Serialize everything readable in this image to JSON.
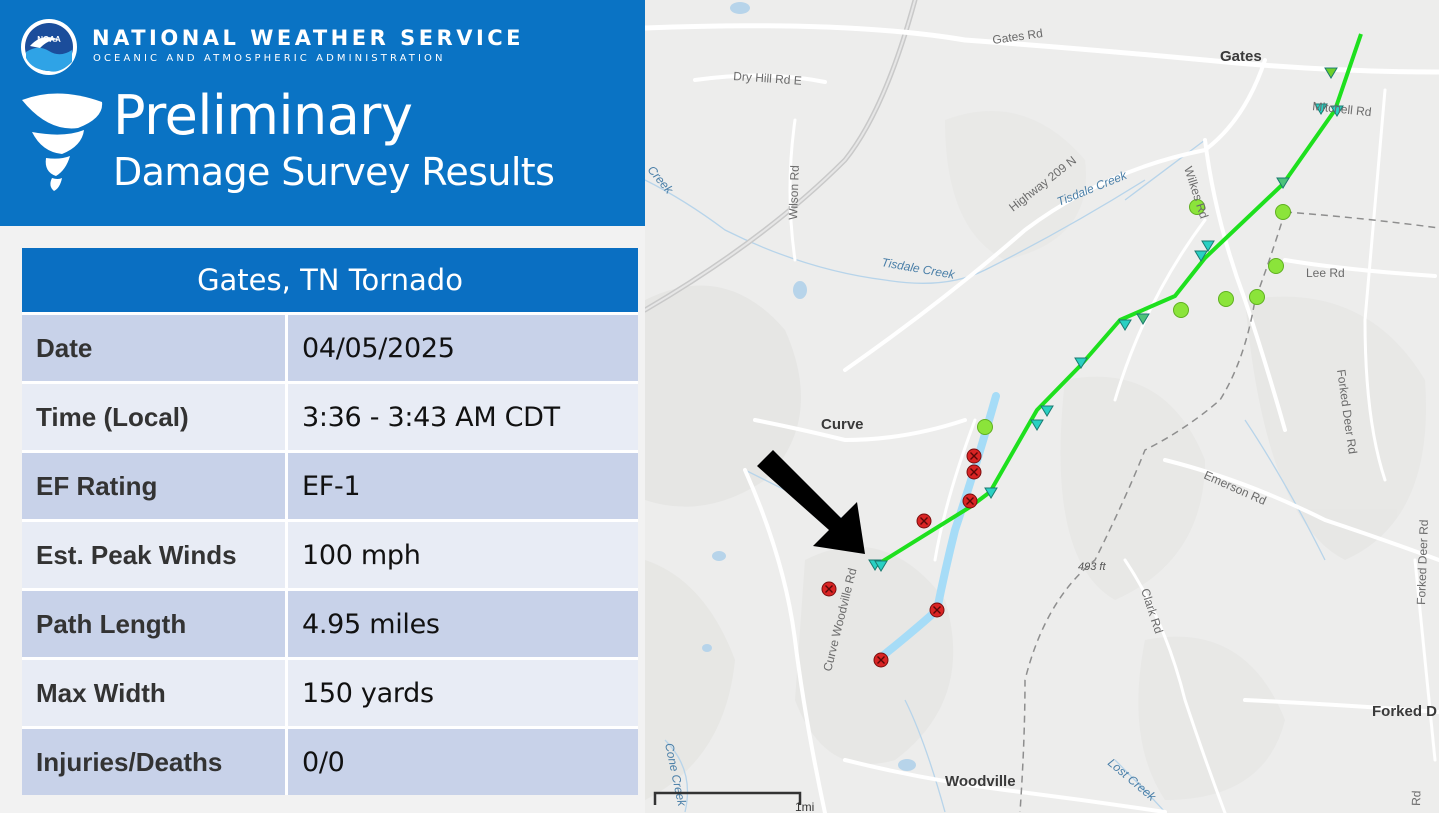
{
  "header": {
    "org_name": "NATIONAL WEATHER SERVICE",
    "org_subtitle": "OCEANIC AND ATMOSPHERIC ADMINISTRATION",
    "logo_text": "NOAA",
    "title_line1": "Preliminary",
    "title_line2": "Damage Survey Results"
  },
  "summary": {
    "title": "Gates, TN Tornado",
    "rows": [
      {
        "label": "Date",
        "value": "04/05/2025"
      },
      {
        "label": "Time (Local)",
        "value": "3:36 - 3:43 AM CDT"
      },
      {
        "label": "EF Rating",
        "value": "EF-1"
      },
      {
        "label": "Est. Peak Winds",
        "value": "100 mph"
      },
      {
        "label": "Path Length",
        "value": "4.95 miles"
      },
      {
        "label": "Max Width",
        "value": "150 yards"
      },
      {
        "label": "Injuries/Deaths",
        "value": "0/0"
      }
    ]
  },
  "map": {
    "places": {
      "gates": "Gates",
      "curve": "Curve",
      "woodville": "Woodville",
      "forked_deer": "Forked D"
    },
    "roads": {
      "gates_rd": "Gates Rd",
      "dry_hill": "Dry Hill Rd E",
      "wilson": "Wilson Rd",
      "highway_209": "Highway 209 N",
      "mitchell": "Mitchell Rd",
      "wilkes": "Wilkes Rd",
      "lee": "Lee Rd",
      "forked_deer_rd": "Forked Deer Rd",
      "forked_deer_rd2": "Forked Deer Rd",
      "emerson": "Emerson Rd",
      "clark": "Clark Rd",
      "curve_woodville": "Curve Woodville Rd",
      "rd_edge": "Rd"
    },
    "water": {
      "tisdale_creek": "Tisdale Creek",
      "tisdale_creek2": "Tisdale Creek",
      "cone_creek": "Cone Creek",
      "lost_creek": "Lost Creek",
      "creek_edge": "Creek"
    },
    "elevation": "493 ft",
    "scale_label": "1mi",
    "colors": {
      "ef1_track": "#1ee01e",
      "ef0_track": "#a6dcf7",
      "ef1_point": "#8be43a",
      "ef0_point": "#d92424",
      "arrow": "#000000",
      "header_blue": "#0a73c4"
    },
    "legend_meaning": {}
  }
}
